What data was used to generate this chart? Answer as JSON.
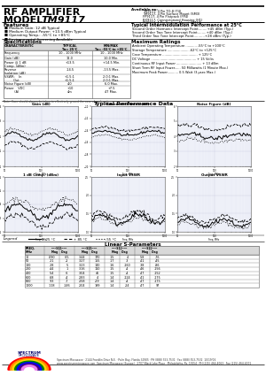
{
  "title_line1": "RF AMPLIFIER",
  "title_line2": "MODEL",
  "title_model": "TM9117",
  "available_as_label": "Available as:",
  "available_as_items": [
    "TM9117, 4 Pin TO-8 (T4)",
    "TM9117, 4 Pin Surface Mount (SM3)",
    "FP9117, 4 Pin Flatpack (FP4)",
    "BX9117, Connectorized Housing (H1)",
    "PN9117, 4 Pin Surface Mount (SM19)"
  ],
  "features_title": "Features",
  "features": [
    "Medium Gain: 12 dB Typical",
    "Medium Output Power: +13.5 dBm Typical",
    "Operating Temp.: -55°C to +85°C",
    "Environmental Screening Available"
  ],
  "intermod_title": "Typical Intermodulation Performance at 25°C",
  "intermod_items": [
    "Second Order Harmonic Intercept Point........+45 dBm (Typ.)",
    "Second Order Two Tone Intercept Point........+40 dBm (Typ.)",
    "Third Order Two Tone Intercept Point..........+28 dBm (Typ.)"
  ],
  "specs_title": "Specifications",
  "max_ratings_title": "Maximum Ratings",
  "max_ratings": [
    "Ambient Operating Temperature ........... -55°C to +100°C",
    "Storage Temperature ..................... -62°C to +125°C",
    "Case Temperature ................................... + 125°C",
    "DC Voltage ............................................. + 15 Volts",
    "Continuous RF Input Power ......................... + 13 dBm",
    "Short Term RF Input Power...... 50 Milliwatts (1 Minute Max.)",
    "Maximum Peak Power........... 0.5 Watt (3 μsec Max.)"
  ],
  "specs_note": "Note: Case should always be taken to effectively ground the case of each unit.",
  "typical_perf_title": "Typical Performance Data",
  "graph_titles_row1": [
    "Gain (dB)",
    "Reverse Isolation (dB)",
    "Noise Figure (dB)"
  ],
  "graph_titles_row2": [
    "1 dB Comp. (dBm)",
    "Input VSWR",
    "Output VSWR"
  ],
  "linear_s_title": "Linear S-Parameters",
  "s_param_rows": [
    [
      "10",
      ".090",
      "-65",
      "3.44",
      "170",
      ".15",
      "4",
      ".58",
      "-76"
    ],
    [
      "50",
      ".21",
      "-2",
      "3.27",
      "155",
      ".17",
      "-3",
      ".41",
      "-45"
    ],
    [
      "100",
      ".28",
      "5",
      "3.23",
      "140",
      ".16",
      "-160",
      ".38",
      "-86"
    ],
    [
      "200",
      ".44",
      "1",
      "3.16",
      "110",
      ".15",
      "-4",
      ".46",
      "-156"
    ],
    [
      "400",
      ".54",
      "-6",
      "3.04",
      "46",
      ".15",
      "-4",
      ".47",
      "-152"
    ],
    [
      "600",
      ".68",
      "-4",
      "2.83",
      "4",
      ".14",
      "-124",
      ".41",
      "-175"
    ],
    [
      "800",
      ".93",
      "-7",
      "2.58",
      "-29",
      ".14",
      "-4",
      ".47",
      "-175"
    ],
    [
      "1000",
      "1.18",
      "-146",
      "2.04",
      "199",
      ".14",
      "-24",
      ".47",
      "97"
    ]
  ],
  "company_addr1": "Spectrum Microwave · 2144 Franklin Drive N.E. · Palm Bay, Florida 32905 · PH (888) 553-7531 · Fax (888) 553-7532  10/19/06",
  "company_addr2": "www.spectrummicrowave.com  Spectrum Microwave (Europe) · 2707 Black Lake Place · Philadelphia, Pa. 19154 · PH (215) 464-4063 · Fax (215) 464-4001",
  "bg_color": "#ffffff"
}
